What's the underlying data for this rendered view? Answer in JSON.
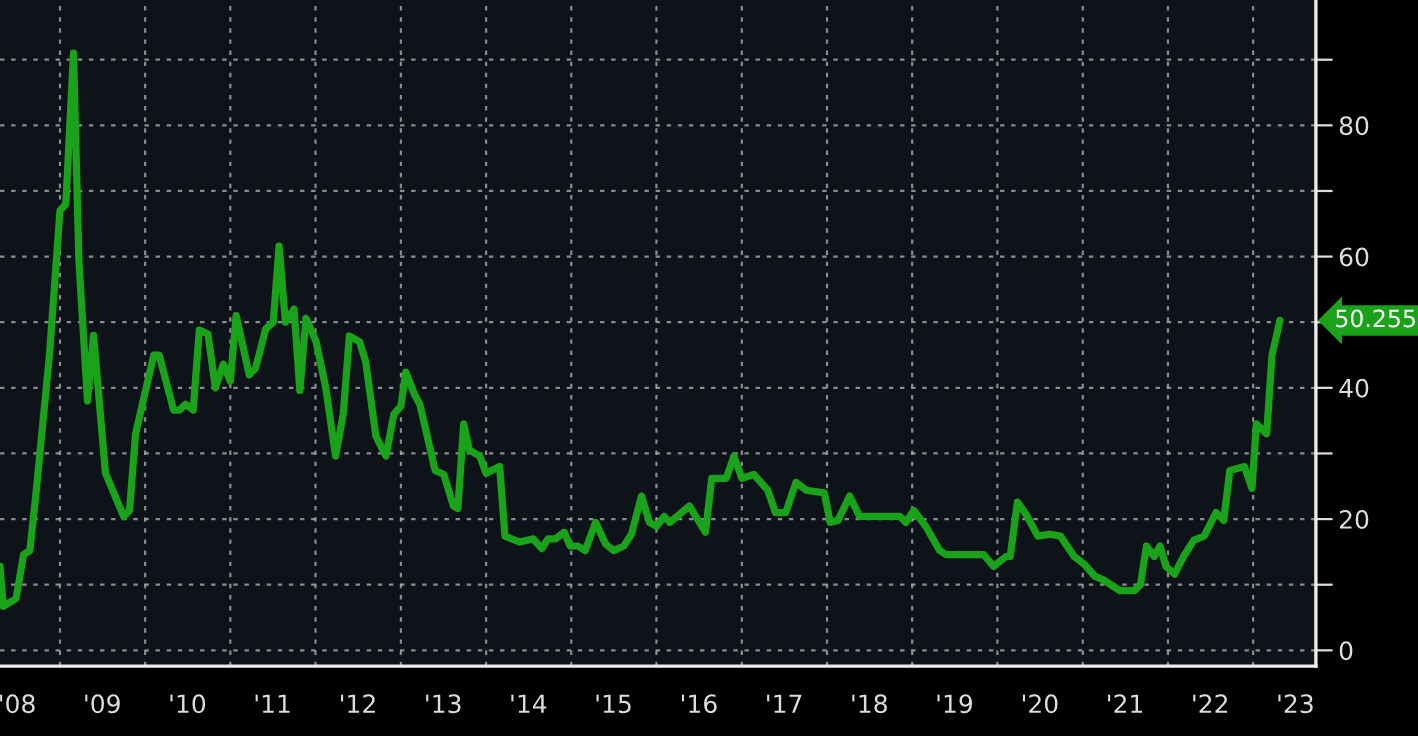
{
  "chart_data": {
    "type": "line",
    "x": [
      "2008-04-19",
      "2008-05-03",
      "2008-06-27",
      "2008-07-29",
      "2008-08-25",
      "2008-09-20",
      "2008-11-17",
      "2009-01-01",
      "2009-01-26",
      "2009-02-28",
      "2009-03-23",
      "2009-04-29",
      "2009-05-25",
      "2009-07-15",
      "2009-10-01",
      "2009-10-26",
      "2009-11-21",
      "2010-02-07",
      "2010-03-02",
      "2010-05-03",
      "2010-05-28",
      "2010-06-23",
      "2010-07-26",
      "2010-08-21",
      "2010-09-27",
      "2010-10-29",
      "2010-12-02",
      "2011-01-01",
      "2011-01-26",
      "2011-03-23",
      "2011-04-19",
      "2011-06-02",
      "2011-07-04",
      "2011-07-29",
      "2011-08-25",
      "2011-10-01",
      "2011-10-26",
      "2011-11-21",
      "2012-01-04",
      "2012-02-14",
      "2012-03-27",
      "2012-04-29",
      "2012-05-25",
      "2012-07-08",
      "2012-08-03",
      "2012-09-16",
      "2012-10-29",
      "2012-12-02",
      "2013-01-01",
      "2013-01-22",
      "2013-02-28",
      "2013-03-23",
      "2013-05-28",
      "2013-07-04",
      "2013-08-14",
      "2013-09-02",
      "2013-09-27",
      "2013-10-22",
      "2013-12-05",
      "2014-01-01",
      "2014-02-28",
      "2014-03-23",
      "2014-05-25",
      "2014-07-22",
      "2014-08-28",
      "2014-09-23",
      "2014-10-26",
      "2014-12-02",
      "2014-12-27",
      "2015-01-29",
      "2015-03-02",
      "2015-04-15",
      "2015-05-28",
      "2015-07-01",
      "2015-08-14",
      "2015-09-16",
      "2015-10-29",
      "2015-12-02",
      "2016-01-01",
      "2016-02-03",
      "2016-02-28",
      "2016-05-21",
      "2016-07-29",
      "2016-08-25",
      "2016-10-26",
      "2016-11-28",
      "2017-01-01",
      "2017-02-21",
      "2017-04-22",
      "2017-05-25",
      "2017-07-08",
      "2017-08-21",
      "2017-10-04",
      "2017-12-20",
      "2018-01-15",
      "2018-02-17",
      "2018-04-08",
      "2018-05-21",
      "2018-11-10",
      "2018-12-05",
      "2019-01-08",
      "2019-02-28",
      "2019-04-29",
      "2019-05-25",
      "2019-11-03",
      "2019-12-16",
      "2020-02-07",
      "2020-02-25",
      "2020-03-27",
      "2020-05-03",
      "2020-06-23",
      "2020-08-14",
      "2020-09-27",
      "2020-11-25",
      "2021-01-08",
      "2021-02-21",
      "2021-04-01",
      "2021-06-09",
      "2021-08-10",
      "2021-09-05",
      "2021-10-01",
      "2021-11-03",
      "2021-11-28",
      "2021-12-23",
      "2022-01-29",
      "2022-03-09",
      "2022-04-22",
      "2022-06-05",
      "2022-07-26",
      "2022-08-28",
      "2022-09-23",
      "2022-11-25",
      "2022-12-27",
      "2023-01-15",
      "2023-02-28",
      "2023-03-23",
      "2023-04-26"
    ],
    "series": [
      {
        "color": "#1aa31a",
        "values": [
          12.8,
          6.7,
          7.9,
          14.6,
          15.2,
          23.8,
          45,
          67,
          68,
          91,
          59.5,
          38,
          48,
          27,
          20.4,
          21.3,
          33,
          45,
          45,
          36.6,
          36.6,
          37.5,
          36.6,
          48.8,
          48.2,
          40,
          43.6,
          41,
          51,
          42,
          43,
          49,
          50,
          61.6,
          50,
          52,
          39.6,
          50.6,
          47,
          40,
          29.6,
          36,
          47.9,
          47,
          44,
          32.6,
          29.6,
          36,
          37.2,
          42.4,
          39,
          37.5,
          27.4,
          26.8,
          22,
          21.6,
          34.5,
          30.5,
          29.6,
          27,
          28,
          17.4,
          16.5,
          17,
          15.5,
          17,
          17,
          18,
          15.9,
          15.9,
          15.2,
          19.5,
          16.2,
          15.2,
          15.9,
          17.7,
          23.5,
          19.5,
          18.9,
          20.4,
          19.5,
          22,
          18,
          26.2,
          26.2,
          29.6,
          26.2,
          26.8,
          24.4,
          21,
          21,
          25.6,
          24.4,
          24,
          19.5,
          19.8,
          23.5,
          20.4,
          20.4,
          19.5,
          21.3,
          18.9,
          15.2,
          14.6,
          14.6,
          12.8,
          14.3,
          14.3,
          22.6,
          20.7,
          17.4,
          17.7,
          17.4,
          14.3,
          13.1,
          11.3,
          10.7,
          9.1,
          9.1,
          10,
          15.9,
          14.3,
          15.9,
          12.8,
          11.6,
          14.3,
          16.8,
          17.4,
          21,
          19.8,
          27.4,
          28,
          24.7,
          34.5,
          33,
          45,
          50.255
        ]
      }
    ],
    "xlim": [
      "2008-04-19",
      "2023-09-27"
    ],
    "xticks": [
      {
        "value": "2009-01-01",
        "label": null
      },
      {
        "value": "2010-01-01",
        "label": null
      },
      {
        "value": "2011-01-01",
        "label": null
      },
      {
        "value": "2012-01-01",
        "label": null
      },
      {
        "value": "2013-01-01",
        "label": null
      },
      {
        "value": "2014-01-01",
        "label": null
      },
      {
        "value": "2015-01-01",
        "label": null
      },
      {
        "value": "2016-01-01",
        "label": null
      },
      {
        "value": "2017-01-01",
        "label": null
      },
      {
        "value": "2018-01-01",
        "label": null
      },
      {
        "value": "2019-01-01",
        "label": null
      },
      {
        "value": "2020-01-01",
        "label": null
      },
      {
        "value": "2021-01-01",
        "label": null
      },
      {
        "value": "2022-01-01",
        "label": null
      },
      {
        "value": "2023-01-01",
        "label": null
      },
      {
        "value": "2008-07-01",
        "label": "'08"
      },
      {
        "value": "2009-07-01",
        "label": "'09"
      },
      {
        "value": "2010-07-01",
        "label": "'10"
      },
      {
        "value": "2011-07-01",
        "label": "'11"
      },
      {
        "value": "2012-07-01",
        "label": "'12"
      },
      {
        "value": "2013-07-01",
        "label": "'13"
      },
      {
        "value": "2014-07-01",
        "label": "'14"
      },
      {
        "value": "2015-07-01",
        "label": "'15"
      },
      {
        "value": "2016-07-01",
        "label": "'16"
      },
      {
        "value": "2017-07-01",
        "label": "'17"
      },
      {
        "value": "2018-07-01",
        "label": "'18"
      },
      {
        "value": "2019-07-01",
        "label": "'19"
      },
      {
        "value": "2020-07-01",
        "label": "'20"
      },
      {
        "value": "2021-07-01",
        "label": "'21"
      },
      {
        "value": "2022-07-01",
        "label": "'22"
      },
      {
        "value": "2023-07-01",
        "label": "'23"
      }
    ],
    "ylim": [
      -2.4,
      99.1
    ],
    "yticks": [
      0,
      {
        "value": 10,
        "label": null
      },
      20,
      {
        "value": 30,
        "label": null
      },
      40,
      {
        "value": 50,
        "label": null
      },
      60,
      {
        "value": 70,
        "label": null
      },
      80,
      {
        "value": 90,
        "label": null
      }
    ],
    "grid": true,
    "annotations": [
      "50.255"
    ]
  }
}
